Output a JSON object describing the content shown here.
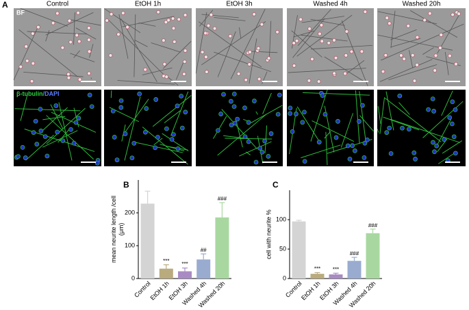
{
  "figure": {
    "panel_labels": [
      "A",
      "B",
      "C"
    ],
    "columns": [
      "Control",
      "EtOH 1h",
      "EtOH 3h",
      "Washed 4h",
      "Washed 20h"
    ],
    "row_bf": "BF",
    "row_stain": [
      "β-tubulin",
      "/DAPI"
    ]
  },
  "chart_data": [
    {
      "type": "bar",
      "ylabel": [
        "mean neurite length /cell",
        "(μm)"
      ],
      "categories": [
        "Control",
        "EtOH 1h",
        "EtOH 3h",
        "Washed 4h",
        "Washed 20h"
      ],
      "values": [
        228,
        30,
        22,
        58,
        186
      ],
      "errors": [
        38,
        12,
        10,
        17,
        45
      ],
      "annotations": [
        null,
        "***",
        "***",
        "##",
        "###"
      ],
      "colors": [
        "#d4d4d4",
        "#b9ab7e",
        "#a98bc4",
        "#9aabd0",
        "#a8d8a0"
      ],
      "ylim": [
        0,
        300
      ],
      "yticks": [
        0,
        100,
        200
      ]
    },
    {
      "type": "bar",
      "ylabel": [
        "cell with neurite %"
      ],
      "categories": [
        "Control",
        "EtOH 1h",
        "EtOH 3h",
        "Washed 4h",
        "Washed 20h"
      ],
      "values": [
        97,
        8,
        7,
        30,
        77
      ],
      "errors": [
        2,
        2,
        2,
        6,
        7
      ],
      "annotations": [
        null,
        "***",
        "***",
        "###",
        "###"
      ],
      "colors": [
        "#d4d4d4",
        "#b9ab7e",
        "#a98bc4",
        "#9aabd0",
        "#a8d8a0"
      ],
      "ylim": [
        0,
        150
      ],
      "yticks": [
        0,
        50,
        100
      ]
    }
  ]
}
